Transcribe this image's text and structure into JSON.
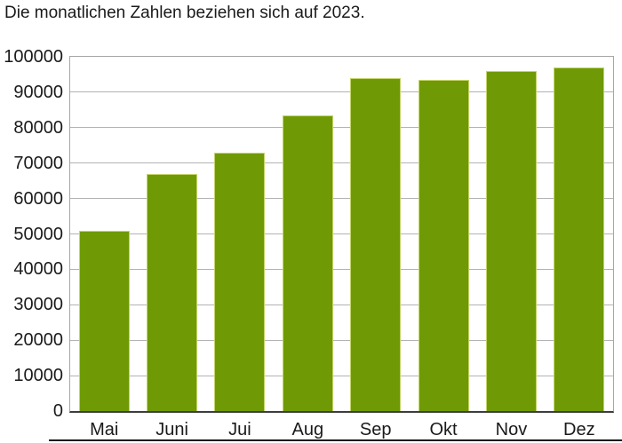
{
  "chart_data": {
    "type": "bar",
    "title": "Die monatlichen Zahlen beziehen sich auf 2023.",
    "categories": [
      "Mai",
      "Juni",
      "Jui",
      "Aug",
      "Sep",
      "Okt",
      "Nov",
      "Dez"
    ],
    "values": [
      51000,
      67000,
      73000,
      83500,
      94000,
      93500,
      96000,
      97000
    ],
    "xlabel": "",
    "ylabel": "",
    "ylim": [
      0,
      100000
    ],
    "ytick_step": 10000,
    "yticks": [
      0,
      10000,
      20000,
      30000,
      40000,
      50000,
      60000,
      70000,
      80000,
      90000,
      100000
    ],
    "grid": true,
    "legend_position": "none",
    "colors": {
      "bar_fill": "#6f9a05",
      "bar_border": "#c3d46a",
      "gridline": "#b3b3b3",
      "plot_border": "#a6a6a6",
      "axis_line": "#3d3d3d",
      "text": "#1a1a1a",
      "footer_rule": "#1c1c1c",
      "background": "#ffffff"
    }
  }
}
